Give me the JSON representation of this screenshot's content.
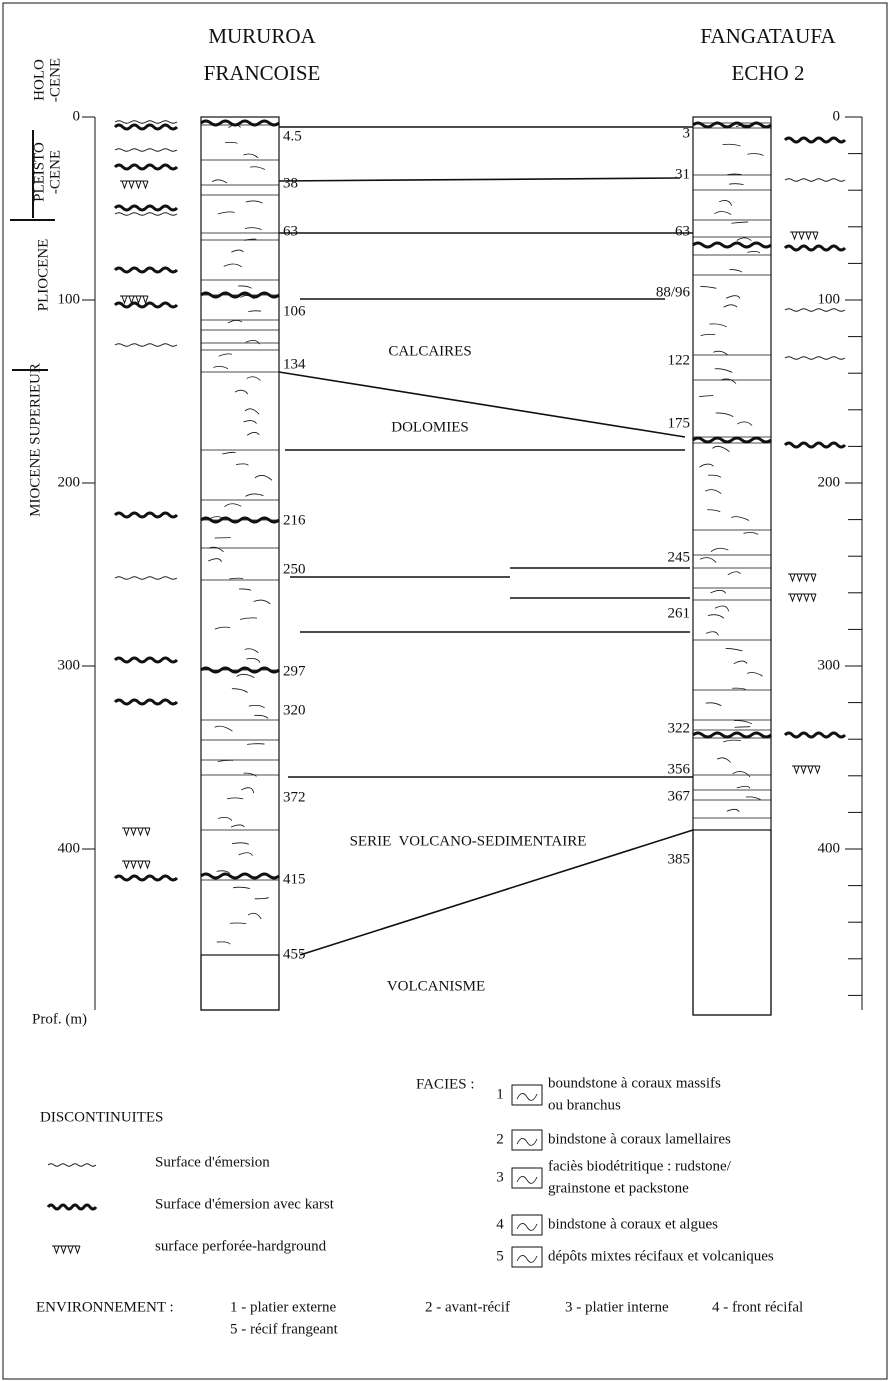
{
  "headers": {
    "mururoa": [
      "MURUROA",
      "FRANCOISE"
    ],
    "fangataufa": [
      "FANGATAUFA",
      "ECHO 2"
    ]
  },
  "ages": [
    [
      "HOLO",
      "-CENE"
    ],
    [
      "PLEISTO",
      "-CENE"
    ],
    [
      "PLIOCENE"
    ],
    [
      "MIOCENE SUPERIEUR"
    ]
  ],
  "depth_axis": {
    "label": "Prof. (m)",
    "ticks": [
      0,
      100,
      200,
      300,
      400
    ]
  },
  "mururoa_depths": [
    "4.5",
    "38",
    "63",
    "106",
    "134",
    "216",
    "250",
    "297",
    "320",
    "372",
    "415",
    "455"
  ],
  "fangataufa_depths": [
    "3",
    "31",
    "63",
    "88/96",
    "122",
    "175",
    "245",
    "261",
    "322",
    "356",
    "367",
    "385"
  ],
  "units": [
    "CALCAIRES",
    "DOLOMIES",
    "SERIE  VOLCANO-SEDIMENTAIRE",
    "VOLCANISME"
  ],
  "legend": {
    "discontinuites": {
      "title": "DISCONTINUITES",
      "items": [
        "Surface d'émersion",
        "Surface d'émersion avec karst",
        "surface perforée-hardground"
      ]
    },
    "facies": {
      "title": "FACIES :",
      "items": [
        {
          "number": "1",
          "lines": [
            "boundstone à coraux massifs",
            "ou branchus"
          ]
        },
        {
          "number": "2",
          "lines": [
            "bindstone à coraux lamellaires"
          ]
        },
        {
          "number": "3",
          "lines": [
            "faciès biodétritique : rudstone/",
            "grainstone et packstone"
          ]
        },
        {
          "number": "4",
          "lines": [
            "bindstone à coraux et algues"
          ]
        },
        {
          "number": "5",
          "lines": [
            "dépôts mixtes récifaux et volcaniques"
          ]
        }
      ]
    },
    "environnement": {
      "title": "ENVIRONNEMENT :",
      "items": [
        "1 - platier externe",
        "2 - avant-récif",
        "3 - platier interne",
        "4 - front récifal",
        "5 - récif frangeant"
      ]
    }
  }
}
